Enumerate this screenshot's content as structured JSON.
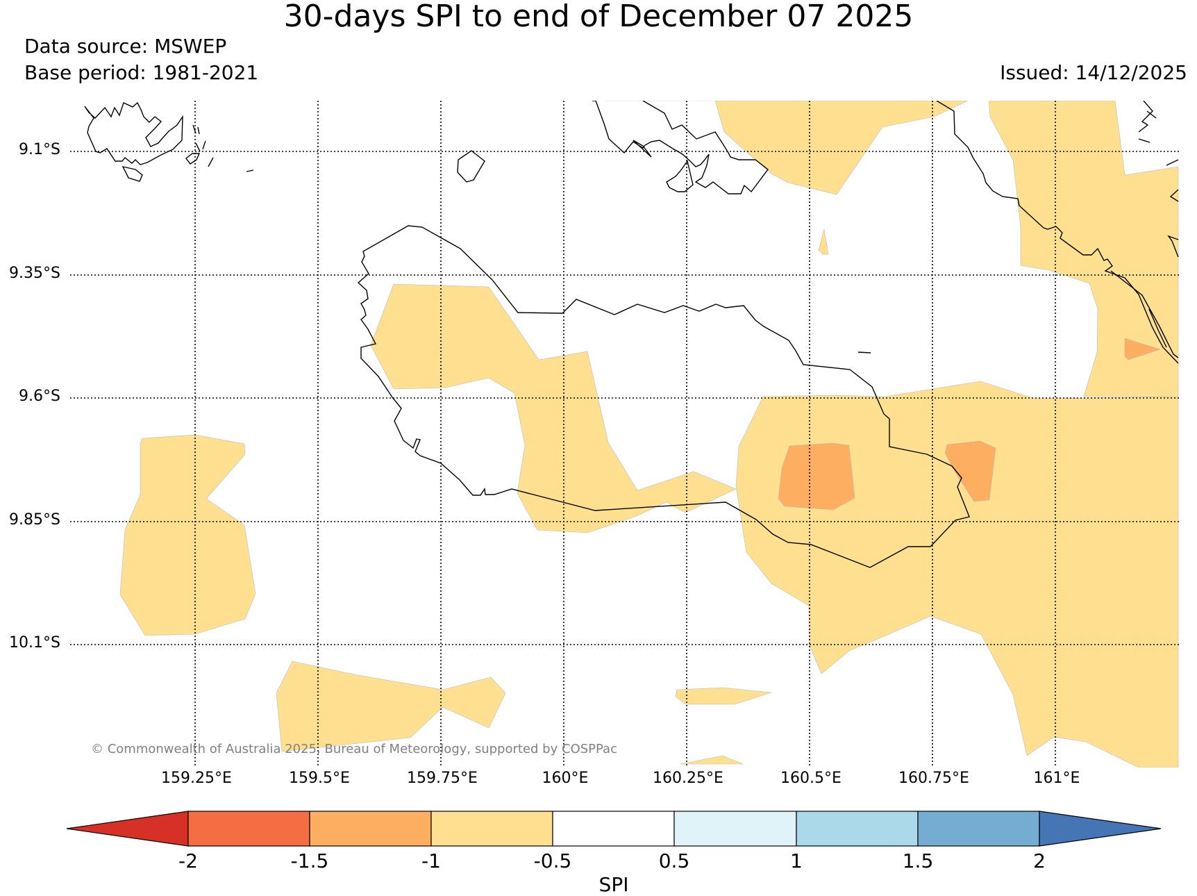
{
  "title": "30-days SPI to end of December 07 2025",
  "data_source": "Data source: MSWEP",
  "base_period": "Base period: 1981-2021",
  "issued": "Issued: 14/12/2025",
  "copyright": "© Commonwealth of Australia 2025, Bureau of Meteorology, supported by COSPPac",
  "latitudes": [
    "9.1°S",
    "9.35°S",
    "9.6°S",
    "9.85°S",
    "10.1°S"
  ],
  "longitudes": [
    "159.25°E",
    "159.5°E",
    "159.75°E",
    "160°E",
    "160.25°E",
    "160.5°E",
    "160.75°E",
    "161°E"
  ],
  "colorbar": {
    "title": "SPI",
    "ticks": [
      "-2",
      "-1.5",
      "-1",
      "-0.5",
      "0.5",
      "1",
      "1.5",
      "2"
    ],
    "colors": {
      "below_-2": "#d73027",
      "-2_to_-1.5": "#f46d43",
      "-1.5_to_-1": "#fdae61",
      "-1_to_-0.5": "#fee090",
      "-0.5_to_0.5": "#ffffff",
      "0.5_to_1": "#e0f3f8",
      "1_to_1.5": "#abd9e9",
      "1.5_to_2": "#74add1",
      "above_2": "#4575b4"
    }
  }
}
